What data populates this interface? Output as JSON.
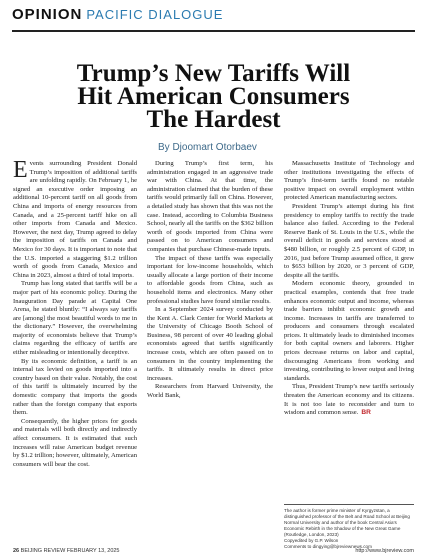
{
  "header": {
    "section": "OPINION",
    "column": "PACIFIC DIALOGUE"
  },
  "title": {
    "lines": [
      "Trump’s New Tariffs Will",
      "Hit American Consumers",
      "The Hardest"
    ]
  },
  "byline": "By Djoomart Otorbaev",
  "columns": [
    [
      "Events surrounding President Donald Trump’s imposition of additional tariffs are unfolding rapidly. On February 1, he signed an executive order imposing an additional 10-percent tariff on all goods from China and imports of energy resources from Canada, and a 25-percent tariff hike on all other imports from Canada and Mexico. However, the next day, Trump agreed to delay the imposition of tariffs on Canada and Mexico for 30 days. It is important to note that the U.S. imported a staggering $1.2 trillion worth of goods from Canada, Mexico and China in 2023, almost a third of total imports.",
      "Trump has long stated that tariffs will be a major part of his economic policy. During the Inauguration Day parade at Capital One Arena, he stated bluntly: “I always say tariffs are [among] the most beautiful words to me in the dictionary.” However, the overwhelming majority of economists believe that Trump’s claims regarding the efficacy of tariffs are either misleading or intentionally deceptive.",
      "By its economic definition, a tariff is an internal tax levied on goods imported into a country based on their value. Notably, the cost of this tariff is ultimately incurred by the domestic company that imports the goods rather than the foreign company that exports them.",
      "Consequently, the higher prices for goods and materials will both directly and indirectly affect consumers. It is estimated that such increases will raise American budget revenue by $1.2 trillion; however, ultimately, American consumers will bear the cost."
    ],
    [
      "During Trump’s first term, his administration engaged in an aggressive trade war with China. At that time, the administration claimed that the burden of these tariffs would primarily fall on China. However, a detailed study has shown that this was not the case. Instead, according to Columbia Business School, nearly all the tariffs on the $362 billion worth of goods imported from China were passed on to American consumers and companies that purchase Chinese-made inputs.",
      "The impact of these tariffs was especially important for low-income households, which usually allocate a large portion of their income to affordable goods from China, such as household items and electronics. Many other professional studies have found similar results.",
      "In a September 2024 survey conducted by the Kent A. Clark Center for World Markets at the University of Chicago Booth School of Business, 98 percent of over 40 leading global economists agreed that tariffs significantly increase costs, which are often passed on to consumers in the country implementing the tariffs. It ultimately results in direct price increases.",
      "Researchers from Harvard University, the World Bank,"
    ],
    [
      "Massachusetts Institute of Technology and other institutions investigating the effects of Trump’s first-term tariffs found no notable positive impact on overall employment within protected American manufacturing sectors.",
      "President Trump’s attempt during his first presidency to employ tariffs to rectify the trade balance also failed. According to the Federal Reserve Bank of St. Louis in the U.S., while the overall deficit in goods and services stood at $480 billion, or roughly 2.5 percent of GDP, in 2016, just before Trump assumed office, it grew to $653 billion by 2020, or 3 percent of GDP, despite all the tariffs.",
      "Modern economic theory, grounded in practical examples, contends that free trade enhances economic output and income, whereas trade barriers inhibit economic growth and income. Increases in tariffs are transferred to producers and consumers through escalated prices. It ultimately leads to diminished incomes for both capital owners and laborers. Higher prices decrease returns on labor and capital, discouraging Americans from working and investing, contributing to lower output and living standards.",
      "Thus, President Trump’s new tariffs seriously threaten the American economy and its citizens. It is not too late to reconsider and turn to wisdom and common sense."
    ]
  ],
  "end_mark": "BR",
  "bio": [
    "The author is former prime minister of Kyrgyzstan, a distinguished professor of the Belt and Road School at Beijing Normal University and author of the book Central Asia’s Economic Rebirth in the Shadow of the New Great Game (Routledge, London, 2023)",
    "Copyedited by G.P. Wilson",
    "Comments to dingying@bjreviewnews.com"
  ],
  "footer": {
    "page": "26",
    "publication": "BEIJING REVIEW FEBRUARY 13, 2025",
    "url": "http://www.bjreview.com"
  }
}
